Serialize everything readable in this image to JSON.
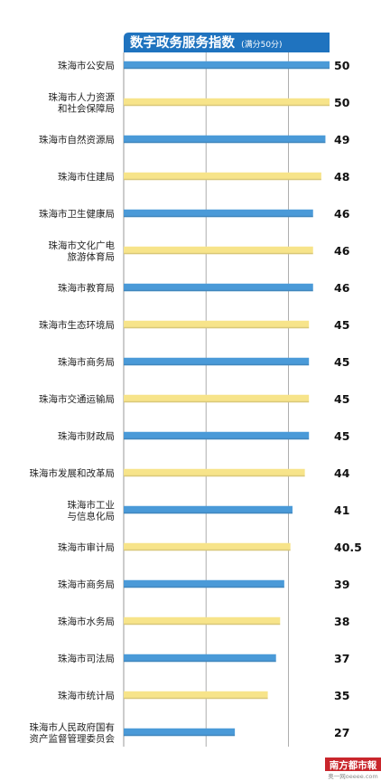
{
  "chart_data": {
    "type": "bar",
    "orientation": "horizontal",
    "title": "数字政务服务指数",
    "subtitle": "(满分50分)",
    "xlim": [
      0,
      50
    ],
    "grid": true,
    "categories": [
      "珠海市公安局",
      "珠海市人力资源\n和社会保障局",
      "珠海市自然资源局",
      "珠海市住建局",
      "珠海市卫生健康局",
      "珠海市文化广电\n旅游体育局",
      "珠海市教育局",
      "珠海市生态环境局",
      "珠海市商务局",
      "珠海市交通运输局",
      "珠海市财政局",
      "珠海市发展和改革局",
      "珠海市工业\n与信息化局",
      "珠海市审计局",
      "珠海市商务局",
      "珠海市水务局",
      "珠海市司法局",
      "珠海市统计局",
      "珠海市人民政府国有\n资产监督管理委员会"
    ],
    "values": [
      50,
      50,
      49,
      48,
      46,
      46,
      46,
      45,
      45,
      45,
      45,
      44,
      41,
      40.5,
      39,
      38,
      37,
      35,
      27
    ],
    "value_labels": [
      "50",
      "50",
      "49",
      "48",
      "46",
      "46",
      "46",
      "45",
      "45",
      "45",
      "45",
      "44",
      "41",
      "40.5",
      "39",
      "38",
      "37",
      "35",
      "27"
    ],
    "bar_colors": [
      "#4a9ad8",
      "#f7e48a"
    ]
  },
  "colors": {
    "header_bg": "#1f73bf",
    "grid": "#9a9a9a",
    "watermark_red": "#c9262c",
    "watermark_gray": "#888888"
  },
  "watermark": {
    "line1": "南方都市報",
    "line2": "奥一网oeeee.com"
  }
}
